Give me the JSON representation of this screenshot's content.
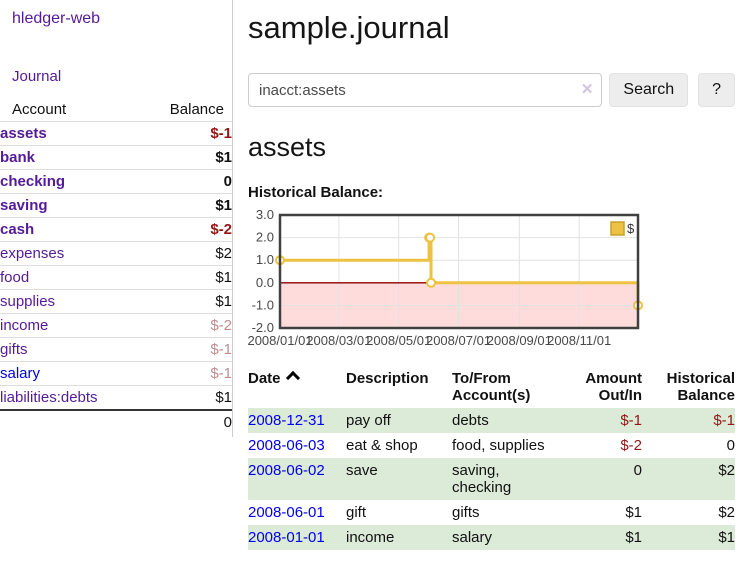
{
  "sidebar": {
    "app_title": "hledger-web",
    "journal_link": "Journal",
    "accounts_table": {
      "headers": [
        "Account",
        "Balance"
      ],
      "rows": [
        {
          "name": "assets",
          "balance": "$-1",
          "depth": 0,
          "bold": true,
          "balance_style": "neg-strong",
          "link": "purple"
        },
        {
          "name": "bank",
          "balance": "$1",
          "depth": 1,
          "bold": true,
          "balance_style": "plain",
          "link": "purple"
        },
        {
          "name": "checking",
          "balance": "0",
          "depth": 2,
          "bold": true,
          "balance_style": "plain",
          "link": "purple"
        },
        {
          "name": "saving",
          "balance": "$1",
          "depth": 2,
          "bold": true,
          "balance_style": "plain",
          "link": "purple"
        },
        {
          "name": "cash",
          "balance": "$-2",
          "depth": 1,
          "bold": true,
          "balance_style": "neg-strong",
          "link": "purple"
        },
        {
          "name": "expenses",
          "balance": "$2",
          "depth": 0,
          "bold": false,
          "balance_style": "plain",
          "link": "purple"
        },
        {
          "name": "food",
          "balance": "$1",
          "depth": 1,
          "bold": false,
          "balance_style": "plain",
          "link": "purple"
        },
        {
          "name": "supplies",
          "balance": "$1",
          "depth": 1,
          "bold": false,
          "balance_style": "plain",
          "link": "purple"
        },
        {
          "name": "income",
          "balance": "$-2",
          "depth": 0,
          "bold": false,
          "balance_style": "neg-soft",
          "link": "purple"
        },
        {
          "name": "gifts",
          "balance": "$-1",
          "depth": 1,
          "bold": false,
          "balance_style": "neg-soft",
          "link": "purple"
        },
        {
          "name": "salary",
          "balance": "$-1",
          "depth": 1,
          "bold": false,
          "balance_style": "neg-soft",
          "link": "blue"
        },
        {
          "name": "liabilities:debts",
          "balance": "$1",
          "depth": 0,
          "bold": false,
          "balance_style": "plain",
          "link": "purple"
        }
      ],
      "total": "0"
    }
  },
  "main": {
    "title": "sample.journal",
    "search": {
      "value": "inacct:assets",
      "clear_icon": "✕",
      "button_label": "Search",
      "help_label": "?"
    },
    "account_heading": "assets",
    "chart_label": "Historical Balance:",
    "register_table": {
      "headers": [
        {
          "lines": [
            "Date"
          ],
          "sortable": true,
          "align": "left"
        },
        {
          "lines": [
            "Description"
          ],
          "sortable": false,
          "align": "left"
        },
        {
          "lines": [
            "To/From",
            "Account(s)"
          ],
          "sortable": false,
          "align": "left"
        },
        {
          "lines": [
            "Amount",
            "Out/In"
          ],
          "sortable": false,
          "align": "right"
        },
        {
          "lines": [
            "Historical",
            "Balance"
          ],
          "sortable": false,
          "align": "right"
        }
      ],
      "rows": [
        {
          "date": "2008-12-31",
          "description": "pay off",
          "accounts": "debts",
          "amount": "$-1",
          "balance": "$-1",
          "amount_negative": true,
          "balance_negative": true,
          "striped": true
        },
        {
          "date": "2008-06-03",
          "description": "eat & shop",
          "accounts": "food, supplies",
          "amount": "$-2",
          "balance": "0",
          "amount_negative": true,
          "balance_negative": false,
          "striped": false
        },
        {
          "date": "2008-06-02",
          "description": "save",
          "accounts": "saving, checking",
          "amount": "0",
          "balance": "$2",
          "amount_negative": false,
          "balance_negative": false,
          "striped": true
        },
        {
          "date": "2008-06-01",
          "description": "gift",
          "accounts": "gifts",
          "amount": "$1",
          "balance": "$2",
          "amount_negative": false,
          "balance_negative": false,
          "striped": false
        },
        {
          "date": "2008-01-01",
          "description": "income",
          "accounts": "salary",
          "amount": "$1",
          "balance": "$1",
          "amount_negative": false,
          "balance_negative": false,
          "striped": true
        }
      ]
    }
  },
  "chart_data": {
    "type": "line",
    "title": "Historical Balance",
    "step": true,
    "series": [
      {
        "name": "$",
        "color": "#edc240",
        "points": [
          {
            "date": "2008-01-01",
            "value": 1
          },
          {
            "date": "2008-06-01",
            "value": 2
          },
          {
            "date": "2008-06-02",
            "value": 2
          },
          {
            "date": "2008-06-03",
            "value": 0
          },
          {
            "date": "2008-12-31",
            "value": -1
          }
        ]
      }
    ],
    "x_ticks": [
      "2008/01/01",
      "2008/03/01",
      "2008/05/01",
      "2008/07/01",
      "2008/09/01",
      "2008/11/01"
    ],
    "y_ticks": [
      "3.0",
      "2.0",
      "1.0",
      "0.0",
      "-1.0",
      "-2.0"
    ],
    "ylim": [
      -2,
      3
    ],
    "xlim": [
      "2008-01-01",
      "2008-12-31"
    ],
    "grid": true,
    "legend": {
      "label": "$",
      "position": "top-right"
    },
    "negative_region_color": "#ffdcdc",
    "zero_line_color": "#8b0000",
    "border_color": "#404040",
    "gridline_color": "#e2e2e2",
    "tick_label_color": "#484848"
  },
  "colors": {
    "purple_link": "#551a9b",
    "blue_link": "#0000ee",
    "negative_strong": "#941616",
    "negative_soft": "#bc8f8f",
    "row_stripe_green": "#dcead8",
    "chart_line_gold": "#edc240"
  }
}
